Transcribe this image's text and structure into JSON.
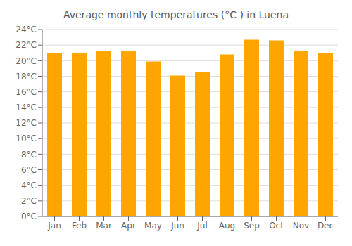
{
  "chart_data": {
    "type": "bar",
    "title": "Average monthly temperatures (°C ) in Luena",
    "categories": [
      "Jan",
      "Feb",
      "Mar",
      "Apr",
      "May",
      "Jun",
      "Jul",
      "Aug",
      "Sep",
      "Oct",
      "Nov",
      "Dec"
    ],
    "values": [
      21.0,
      21.0,
      21.3,
      21.3,
      19.9,
      18.1,
      18.5,
      20.8,
      22.7,
      22.6,
      21.3,
      21.0
    ],
    "color": "#FFA500",
    "ylim": [
      0,
      24
    ],
    "yticks": [
      {
        "value": 0,
        "label": "0°C"
      },
      {
        "value": 2,
        "label": "2°C"
      },
      {
        "value": 4,
        "label": "4°C"
      },
      {
        "value": 6,
        "label": "6°C"
      },
      {
        "value": 8,
        "label": "8°C"
      },
      {
        "value": 10,
        "label": "10°C"
      },
      {
        "value": 12,
        "label": "12°C"
      },
      {
        "value": 14,
        "label": "14°C"
      },
      {
        "value": 16,
        "label": "16°C"
      },
      {
        "value": 18,
        "label": "18°C"
      },
      {
        "value": 20,
        "label": "20°C"
      },
      {
        "value": 22,
        "label": "22°C"
      },
      {
        "value": 24,
        "label": "24°C"
      }
    ],
    "grid": true
  }
}
